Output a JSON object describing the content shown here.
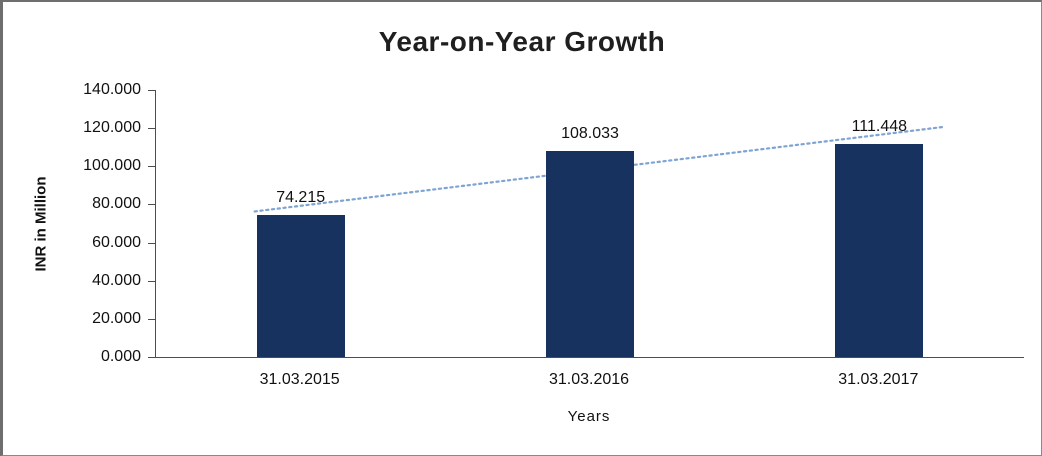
{
  "chart_data": {
    "type": "bar",
    "title": "Year-on-Year Growth",
    "categories": [
      "31.03.2015",
      "31.03.2016",
      "31.03.2017"
    ],
    "values": [
      74.215,
      108.033,
      111.448
    ],
    "data_labels": [
      "74.215",
      "108.033",
      "111.448"
    ],
    "xlabel": "Years",
    "ylabel": "INR in Million",
    "ylim": [
      0,
      140
    ],
    "ytick_labels": [
      "140.000",
      "120.000",
      "100.000",
      "80.000",
      "60.000",
      "40.000",
      "20.000",
      "0.000"
    ],
    "grid": false,
    "legend": false,
    "bar_color": "#17325E",
    "trendline": {
      "type": "linear",
      "style": "dotted",
      "color": "#7EA4D3"
    }
  }
}
